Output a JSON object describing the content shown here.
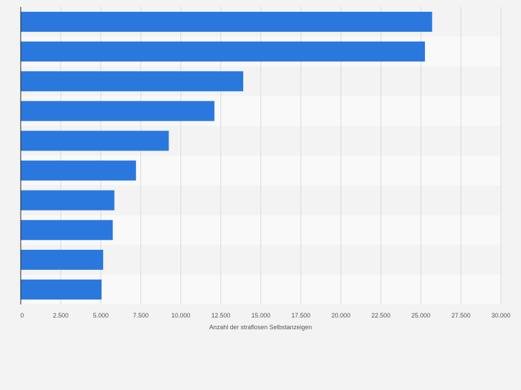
{
  "chart_data": {
    "type": "bar",
    "orientation": "horizontal",
    "categories": [
      "",
      "",
      "",
      "",
      "",
      "",
      "",
      "",
      "",
      ""
    ],
    "values": [
      25700,
      25250,
      13900,
      12100,
      9250,
      7200,
      5850,
      5750,
      5150,
      5050
    ],
    "xlabel": "Anzahl der straflosen Selbstanzeigen",
    "xlim": [
      0,
      30000
    ],
    "xticks": [
      "0",
      "2.500",
      "5.000",
      "7.500",
      "10.000",
      "12.500",
      "15.000",
      "17.500",
      "20.000",
      "22.500",
      "25.000",
      "27.500",
      "30.000"
    ],
    "grid": true,
    "colors": {
      "bar": "#2a78de",
      "band_light": "#f9f9f9",
      "band_dark": "#f3f3f3",
      "grid": "#d9d9d9",
      "axis": "#222222",
      "tick_text": "#555555"
    }
  }
}
